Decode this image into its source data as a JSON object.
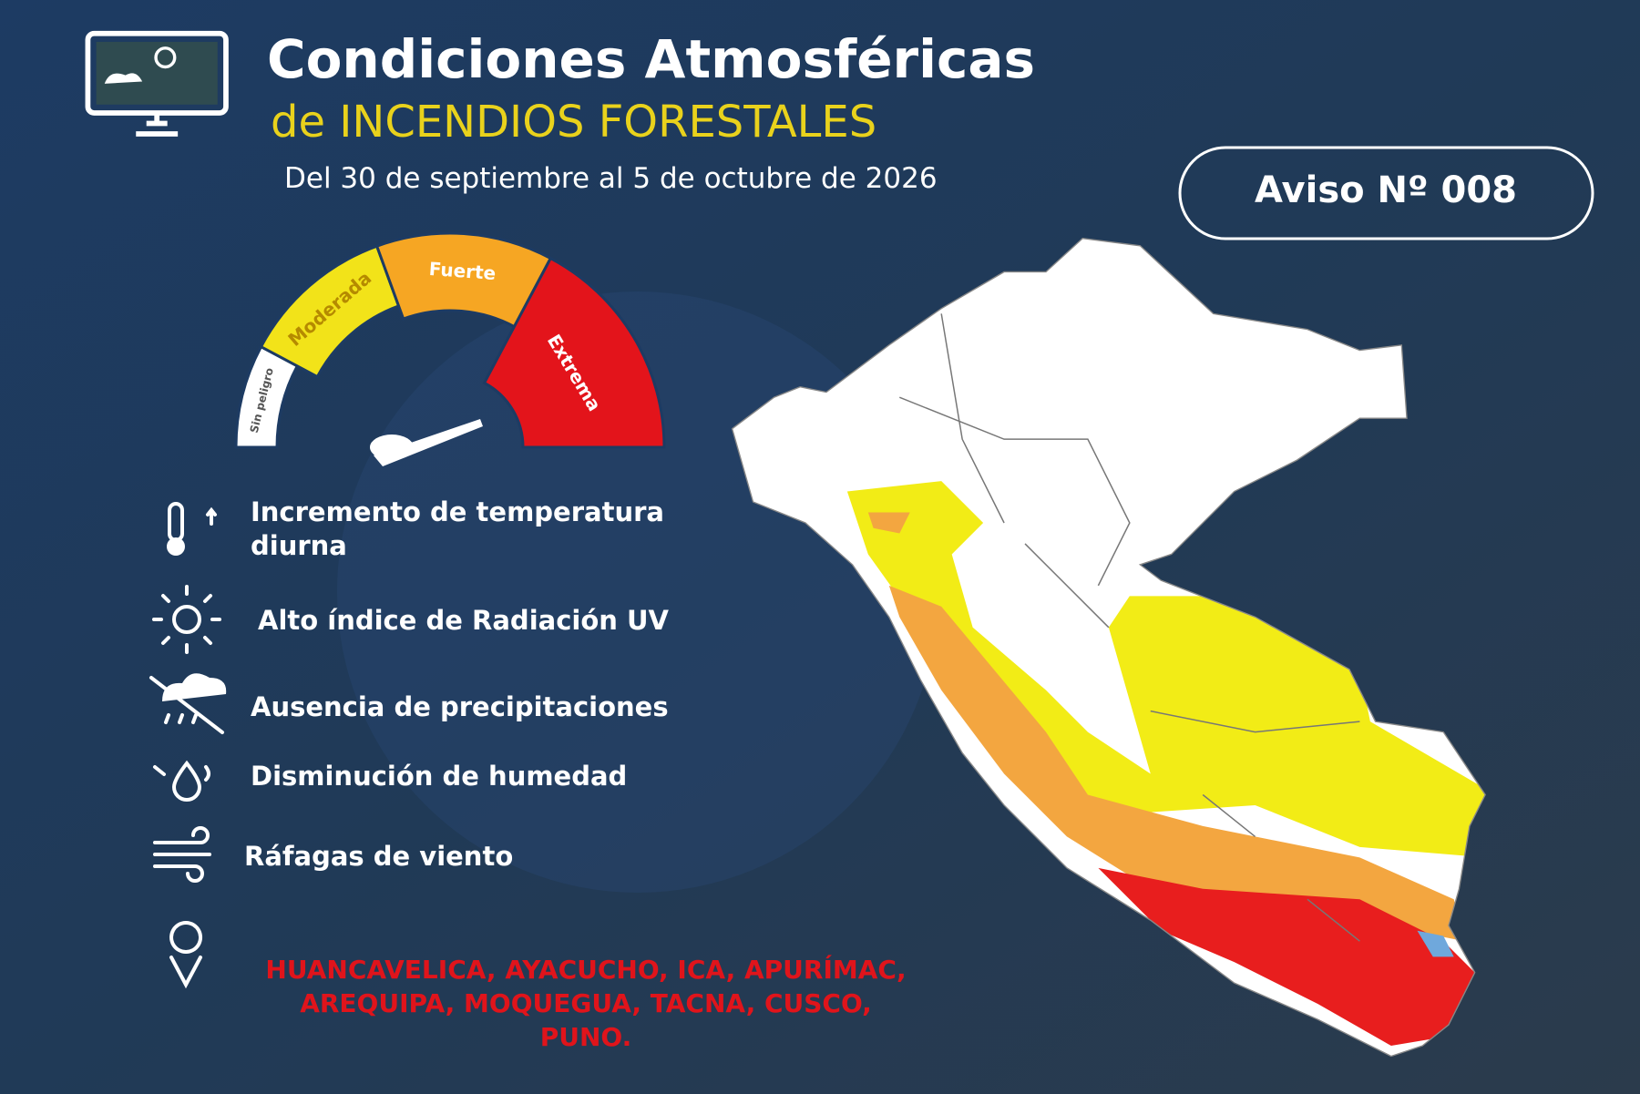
{
  "header": {
    "title": "Condiciones Atmosféricas",
    "subtitle": "de INCENDIOS FORESTALES",
    "dates": "Del 30 de septiembre al 5 de octubre de 2026",
    "notice": "Aviso Nº 008"
  },
  "gauge": {
    "levels": [
      "Sin peligro",
      "Moderada",
      "Fuerte",
      "Extrema"
    ]
  },
  "conditions": [
    "Incremento  de temperatura",
    "diurna",
    "Alto índice de Radiación UV",
    "Ausencia de precipitaciones",
    "Disminución de humedad",
    "Ráfagas de viento"
  ],
  "regions": [
    "HUANCAVELICA, AYACUCHO, ICA, APURÍMAC,",
    "AREQUIPA, MOQUEGUA, TACNA, CUSCO,",
    "PUNO."
  ]
}
